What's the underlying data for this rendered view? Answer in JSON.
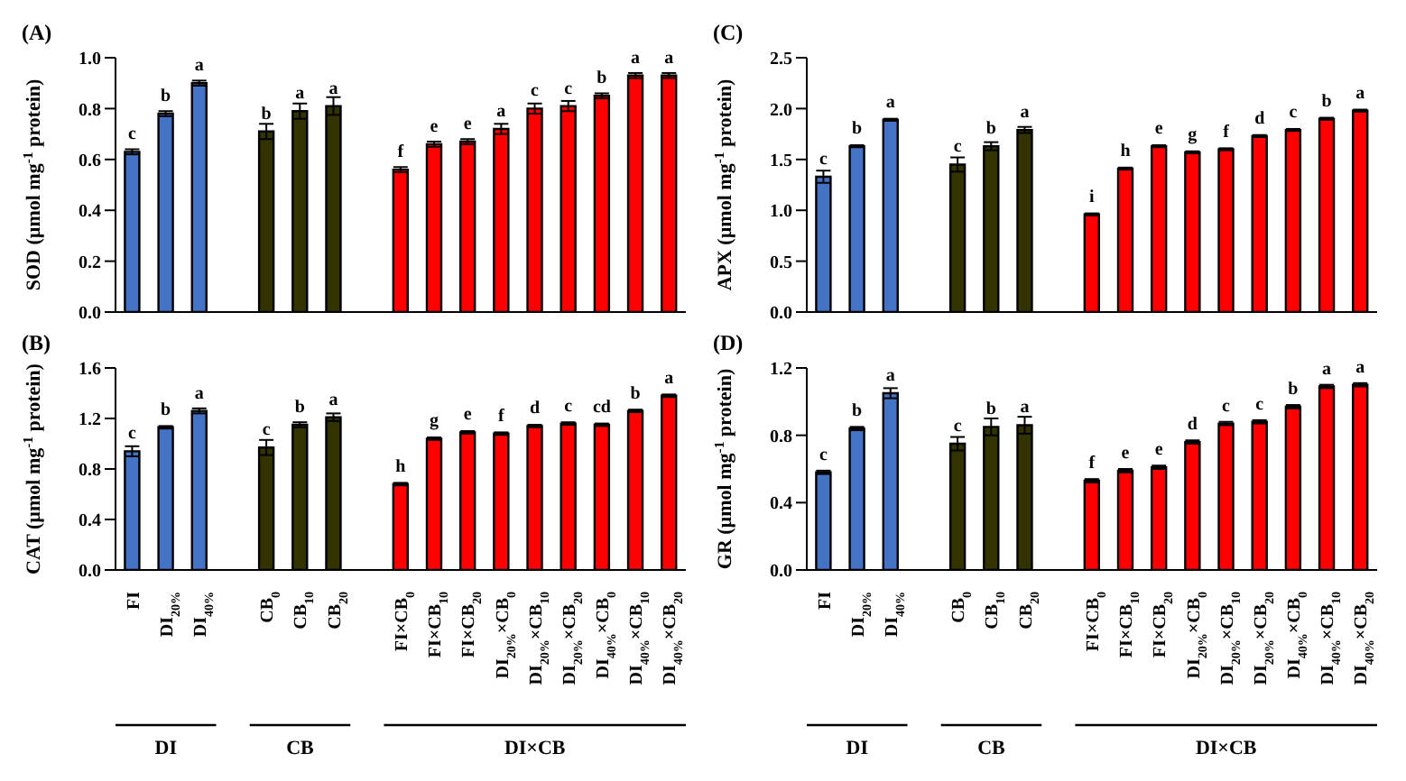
{
  "chart_data": [
    {
      "type": "bar",
      "title": "(A)",
      "ylabel": "SOD (µmol mg$^{-1}$ protein)",
      "tick_labels": "y",
      "categories": [
        null,
        null,
        null,
        null,
        null,
        null,
        null,
        null,
        null,
        null,
        null,
        null,
        null,
        null,
        null,
        null,
        null
      ],
      "values": [
        0.63,
        0.78,
        0.9,
        null,
        0.71,
        0.79,
        0.81,
        null,
        0.56,
        0.66,
        0.67,
        0.72,
        0.8,
        0.81,
        0.85,
        0.93,
        0.93
      ],
      "errors": [
        0.01,
        0.01,
        0.01,
        null,
        0.03,
        0.03,
        0.035,
        null,
        0.01,
        0.01,
        0.01,
        0.02,
        0.02,
        0.02,
        0.01,
        0.01,
        0.01
      ],
      "value_labels": [
        "c",
        "b",
        "a",
        null,
        "b",
        "a",
        "a",
        null,
        "f",
        "e",
        "e",
        "a",
        "c",
        "c",
        "b",
        "a",
        "a"
      ],
      "colors": [
        "#4472c4",
        "#4472c4",
        "#4472c4",
        null,
        "#333300",
        "#333300",
        "#333300",
        null,
        "#ff0000",
        "#ff0000",
        "#ff0000",
        "#ff0000",
        "#ff0000",
        "#ff0000",
        "#ff0000",
        "#ff0000",
        "#ff0000"
      ],
      "ylim": [
        0,
        1
      ],
      "yticks": [
        {
          "value": 0,
          "label": "0.0"
        },
        0.2,
        0.4,
        0.6,
        0.8,
        {
          "value": 1,
          "label": "1.0"
        }
      ]
    },
    {
      "type": "bar",
      "title": "(C)",
      "ylabel": "APX (µmol mg$^{-1}$ protein)",
      "tick_labels": "y",
      "categories": [
        null,
        null,
        null,
        null,
        null,
        null,
        null,
        null,
        null,
        null,
        null,
        null,
        null,
        null,
        null,
        null,
        null
      ],
      "values": [
        1.33,
        1.63,
        1.89,
        null,
        1.45,
        1.63,
        1.79,
        null,
        0.96,
        1.41,
        1.63,
        1.57,
        1.6,
        1.73,
        1.79,
        1.9,
        1.98
      ],
      "errors": [
        0.06,
        0.01,
        0.01,
        null,
        0.07,
        0.04,
        0.03,
        null,
        0.01,
        0.01,
        0.01,
        0.01,
        0.01,
        0.01,
        0.01,
        0.01,
        0.01
      ],
      "value_labels": [
        "c",
        "b",
        "a",
        null,
        "c",
        "b",
        "a",
        null,
        "i",
        "h",
        "e",
        "g",
        "f",
        "d",
        "c",
        "b",
        "a"
      ],
      "colors": [
        "#4472c4",
        "#4472c4",
        "#4472c4",
        null,
        "#333300",
        "#333300",
        "#333300",
        null,
        "#ff0000",
        "#ff0000",
        "#ff0000",
        "#ff0000",
        "#ff0000",
        "#ff0000",
        "#ff0000",
        "#ff0000",
        "#ff0000"
      ],
      "ylim": [
        0,
        2.5
      ],
      "yticks": [
        {
          "value": 0,
          "label": "0.0"
        },
        0.5,
        {
          "value": 1,
          "label": "1.0"
        },
        1.5,
        {
          "value": 2,
          "label": "2.0"
        },
        2.5
      ]
    },
    {
      "type": "bar",
      "title": "(B)",
      "ylabel": "CAT (µmol mg$^{-1}$ protein)",
      "annotations": [
        "DI",
        "CB",
        "DI×CB"
      ],
      "categories": [
        "FI",
        "DI$_{20%}$",
        "DI$_{40%}$",
        null,
        "CB$_{0}$",
        "CB$_{10}$",
        "CB$_{20}$",
        null,
        "FI×CB$_{0}$",
        "FI×CB$_{10}$",
        "FI×CB$_{20}$",
        "DI$_{20%}$×CB$_{0}$",
        "DI$_{20%}$×CB$_{10}$",
        "DI$_{20%}$×CB$_{20}$",
        "DI$_{40%}$×CB$_{0}$",
        "DI$_{40%}$×CB$_{10}$",
        "DI$_{40%}$×CB$_{20}$"
      ],
      "values": [
        0.94,
        1.13,
        1.26,
        null,
        0.97,
        1.15,
        1.21,
        null,
        0.68,
        1.04,
        1.09,
        1.08,
        1.14,
        1.16,
        1.15,
        1.26,
        1.38
      ],
      "errors": [
        0.04,
        0.01,
        0.02,
        null,
        0.06,
        0.02,
        0.03,
        null,
        0.01,
        0.01,
        0.01,
        0.01,
        0.01,
        0.01,
        0.01,
        0.01,
        0.01
      ],
      "value_labels": [
        "c",
        "b",
        "a",
        null,
        "c",
        "b",
        "a",
        null,
        "h",
        "g",
        "e",
        "f",
        "d",
        "c",
        "cd",
        "b",
        "a"
      ],
      "colors": [
        "#4472c4",
        "#4472c4",
        "#4472c4",
        null,
        "#333300",
        "#333300",
        "#333300",
        null,
        "#ff0000",
        "#ff0000",
        "#ff0000",
        "#ff0000",
        "#ff0000",
        "#ff0000",
        "#ff0000",
        "#ff0000",
        "#ff0000"
      ],
      "ylim": [
        0,
        1.6
      ],
      "yticks": [
        {
          "value": 0,
          "label": "0.0"
        },
        0.4,
        0.8,
        1.2,
        1.6
      ]
    },
    {
      "type": "bar",
      "title": "(D)",
      "ylabel": "GR (µmol mg$^{-1}$ protein)",
      "annotations": [
        "DI",
        "CB",
        "DI×CB"
      ],
      "categories": [
        "FI",
        "DI$_{20%}$",
        "DI$_{40%}$",
        null,
        "CB$_{0}$",
        "CB$_{10}$",
        "CB$_{20}$",
        null,
        "FI×CB$_{0}$",
        "FI×CB$_{10}$",
        "FI×CB$_{20}$",
        "DI$_{20%}$×CB$_{0}$",
        "DI$_{20%}$×CB$_{10}$",
        "DI$_{20%}$×CB$_{20}$",
        "DI$_{40%}$×CB$_{0}$",
        "DI$_{40%}$×CB$_{10}$",
        "DI$_{40%}$×CB$_{20}$"
      ],
      "values": [
        0.58,
        0.84,
        1.05,
        null,
        0.75,
        0.85,
        0.86,
        null,
        0.53,
        0.59,
        0.61,
        0.76,
        0.87,
        0.88,
        0.97,
        1.09,
        1.1
      ],
      "errors": [
        0.01,
        0.01,
        0.03,
        null,
        0.04,
        0.05,
        0.05,
        null,
        0.01,
        0.01,
        0.01,
        0.01,
        0.01,
        0.01,
        0.01,
        0.01,
        0.01
      ],
      "value_labels": [
        "c",
        "b",
        "a",
        null,
        "c",
        "b",
        "a",
        null,
        "f",
        "e",
        "e",
        "d",
        "c",
        "c",
        "b",
        "a",
        "a"
      ],
      "colors": [
        "#4472c4",
        "#4472c4",
        "#4472c4",
        null,
        "#333300",
        "#333300",
        "#333300",
        null,
        "#ff0000",
        "#ff0000",
        "#ff0000",
        "#ff0000",
        "#ff0000",
        "#ff0000",
        "#ff0000",
        "#ff0000",
        "#ff0000"
      ],
      "ylim": [
        0,
        1.2
      ],
      "yticks": [
        {
          "value": 0,
          "label": "0.0"
        },
        0.4,
        0.8,
        1.2
      ]
    }
  ]
}
